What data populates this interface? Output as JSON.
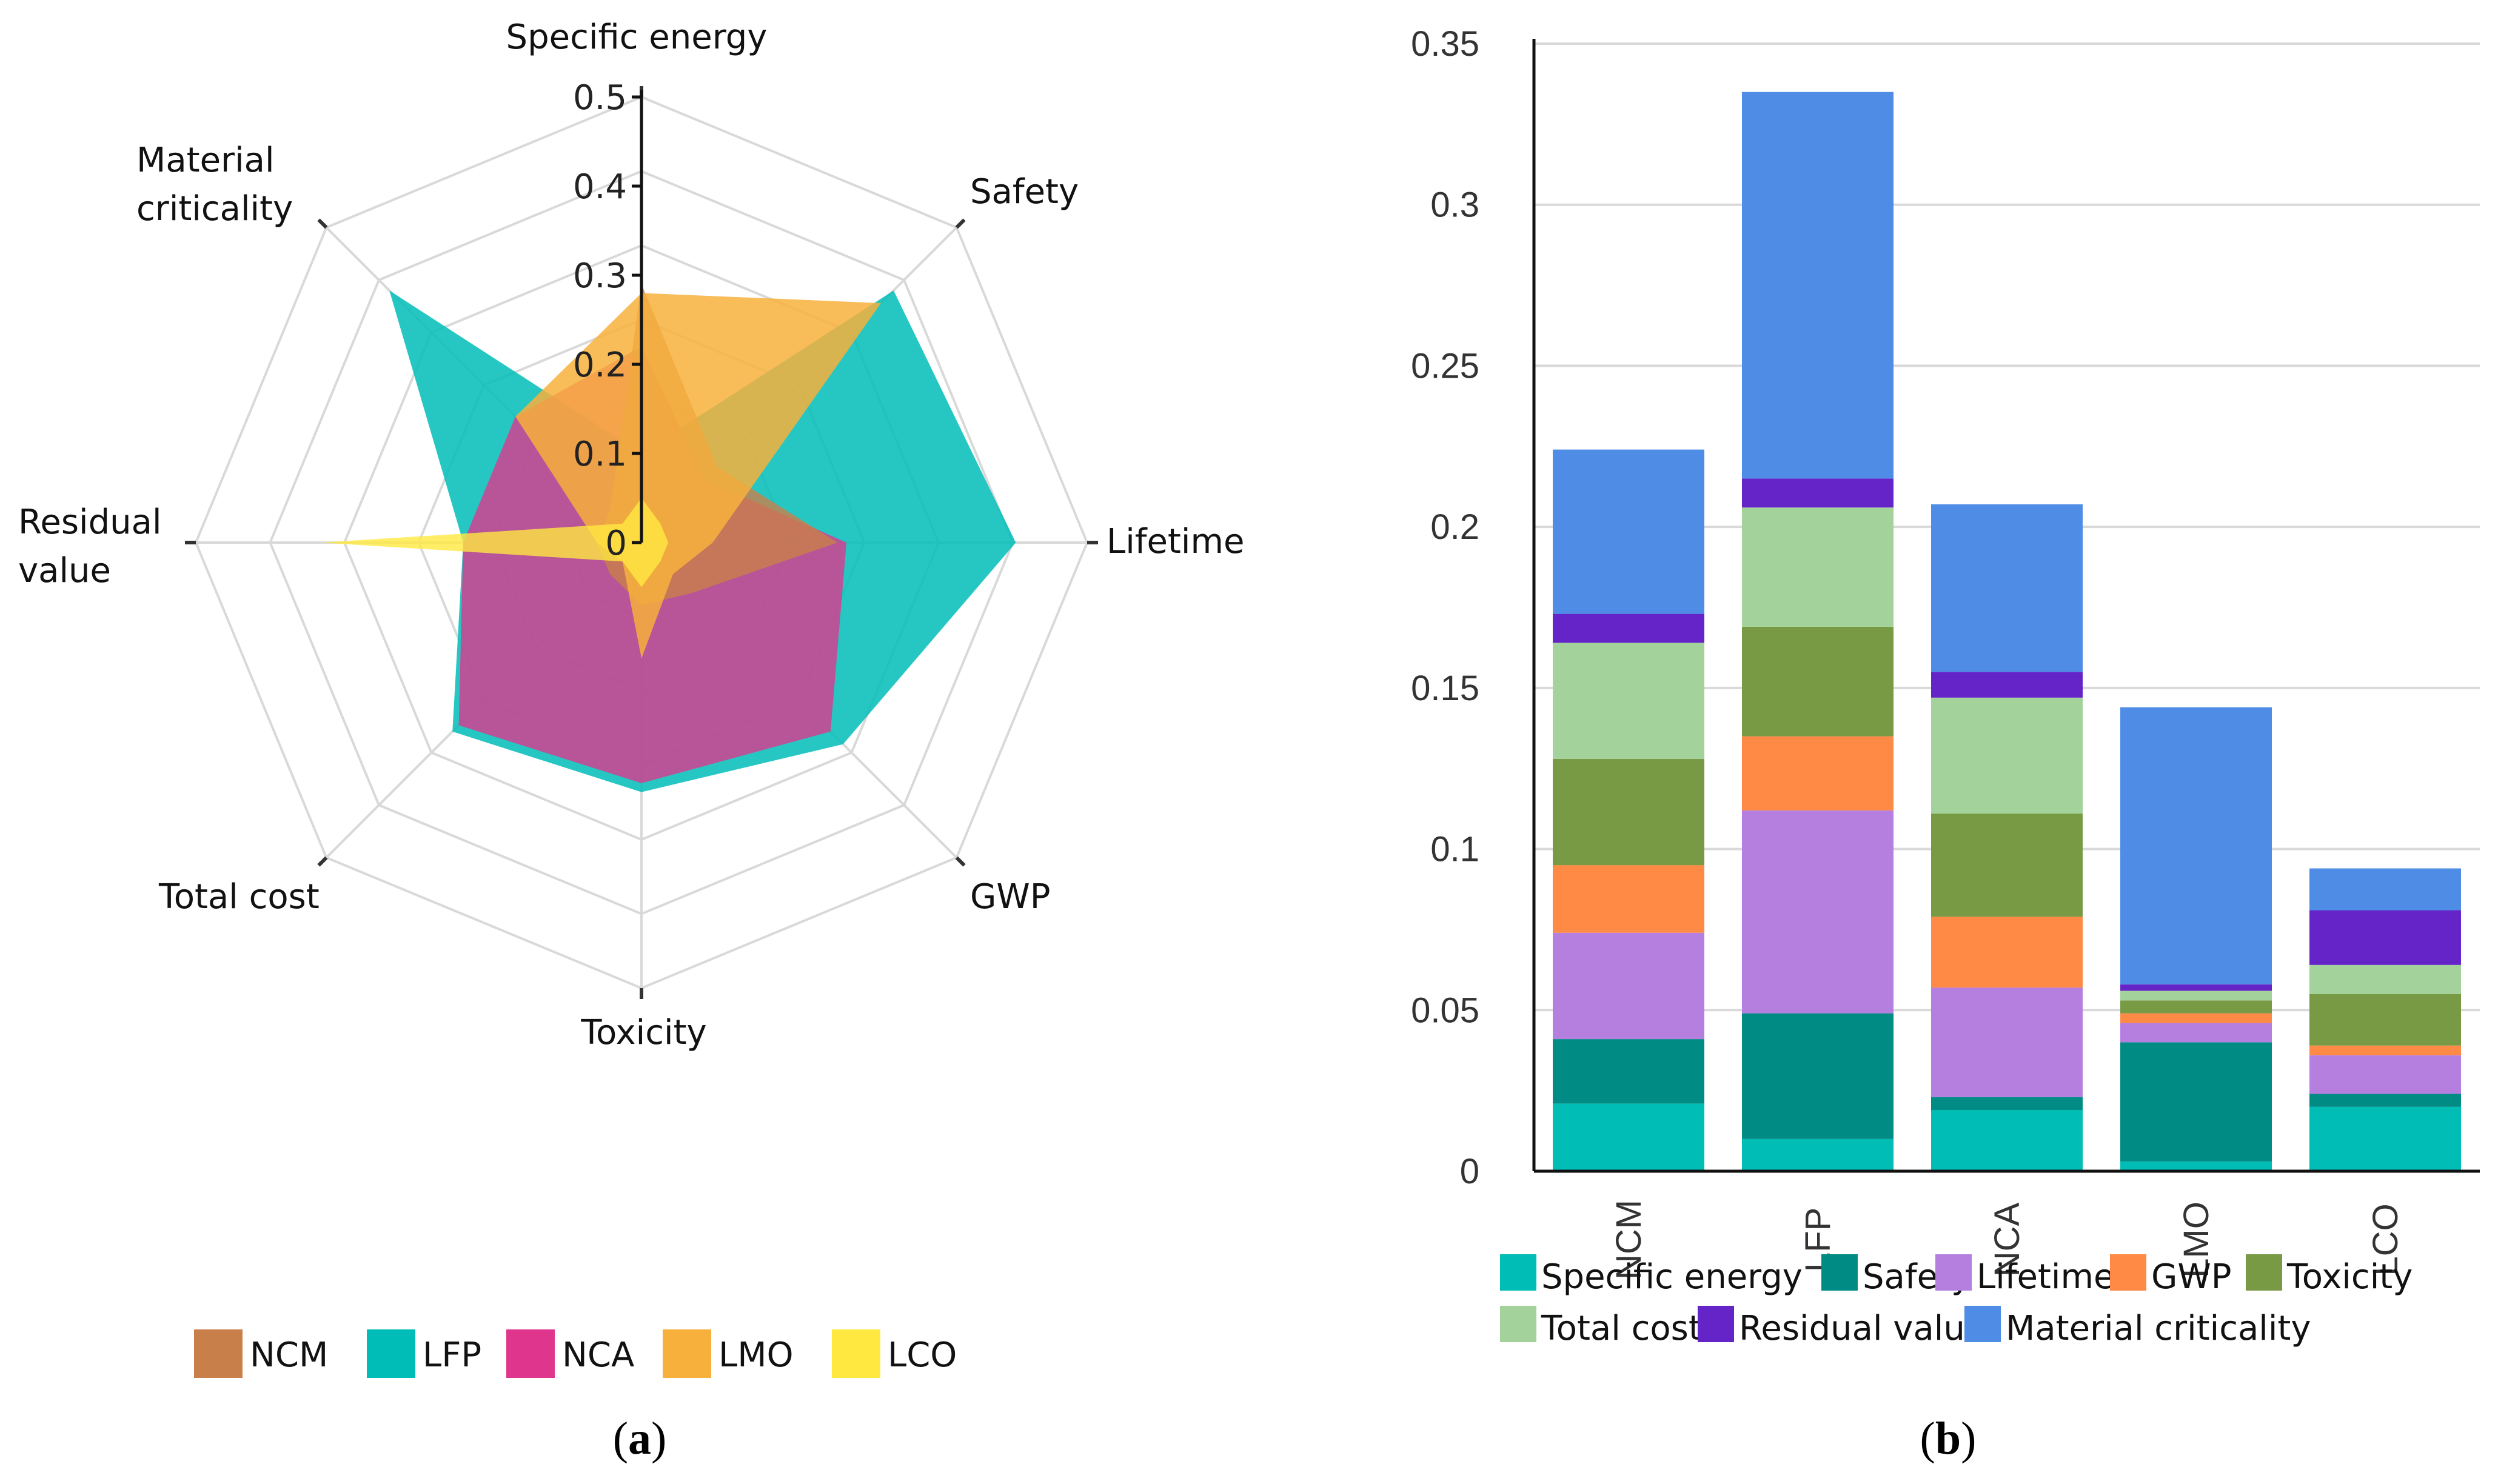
{
  "panel_labels": {
    "a_open": "(",
    "a": "a",
    "a_close": ")",
    "b_open": "(",
    "b": "b",
    "b_close": ")"
  },
  "chart_data": [
    {
      "type": "radar",
      "panel": "a",
      "axes": [
        "Specific energy",
        "Safety",
        "Lifetime",
        "GWP",
        "Toxicity",
        "Total cost",
        "Residual value",
        "Material criticality"
      ],
      "axis_label_lines": [
        [
          "Specific energy"
        ],
        [
          "Safety"
        ],
        [
          "Lifetime"
        ],
        [
          "GWP"
        ],
        [
          "Toxicity"
        ],
        [
          "Total cost"
        ],
        [
          "Residual",
          "value"
        ],
        [
          "Material",
          "criticality"
        ]
      ],
      "rlim": [
        0,
        0.5
      ],
      "rticks": [
        0,
        0.1,
        0.2,
        0.3,
        0.4,
        0.5
      ],
      "rtick_labels": [
        "0",
        "0.1",
        "0.2",
        "0.3",
        "0.4",
        "0.5"
      ],
      "series": [
        {
          "name": "LFP",
          "color": "#00BDB8",
          "opacity": 0.85,
          "values": [
            0.1,
            0.4,
            0.42,
            0.32,
            0.28,
            0.3,
            0.2,
            0.4
          ]
        },
        {
          "name": "NCA",
          "color": "#E0358C",
          "opacity": 0.78,
          "values": [
            0.22,
            0.1,
            0.23,
            0.3,
            0.27,
            0.29,
            0.2,
            0.2
          ]
        },
        {
          "name": "NCM",
          "color": "#C97F4A",
          "opacity": 0.8,
          "values": [
            0.29,
            0.12,
            0.22,
            0.08,
            0.07,
            0.05,
            0.05,
            0.05
          ]
        },
        {
          "name": "LMO",
          "color": "#F7B03C",
          "opacity": 0.85,
          "values": [
            0.28,
            0.38,
            0.08,
            0.05,
            0.13,
            0.03,
            0.05,
            0.2
          ]
        },
        {
          "name": "LCO",
          "color": "#FFE840",
          "opacity": 0.8,
          "values": [
            0.05,
            0.03,
            0.03,
            0.03,
            0.05,
            0.03,
            0.36,
            0.03
          ]
        }
      ],
      "legend": [
        "NCM",
        "LFP",
        "NCA",
        "LMO",
        "LCO"
      ],
      "legend_colors": [
        "#C97F4A",
        "#00BDB8",
        "#E0358C",
        "#F7B03C",
        "#FFE840"
      ]
    },
    {
      "type": "stacked_bar",
      "panel": "b",
      "categories": [
        "NCM",
        "LFP",
        "NCA",
        "LMO",
        "LCO"
      ],
      "ylim": [
        0,
        0.35
      ],
      "yticks": [
        0,
        0.05,
        0.1,
        0.15,
        0.2,
        0.25,
        0.3,
        0.35
      ],
      "ytick_labels": [
        "0",
        "0.05",
        "0.1",
        "0.15",
        "0.2",
        "0.25",
        "0.3",
        "0.35"
      ],
      "grid": true,
      "series": [
        {
          "name": "Specific energy",
          "color": "#00BDB5",
          "values": [
            0.021,
            0.01,
            0.019,
            0.003,
            0.02
          ]
        },
        {
          "name": "Safety",
          "color": "#008C84",
          "values": [
            0.02,
            0.039,
            0.004,
            0.037,
            0.004
          ]
        },
        {
          "name": "Lifetime",
          "color": "#B57FE0",
          "values": [
            0.033,
            0.063,
            0.034,
            0.006,
            0.012
          ]
        },
        {
          "name": "GWP",
          "color": "#FF8A45",
          "values": [
            0.021,
            0.023,
            0.022,
            0.003,
            0.003
          ]
        },
        {
          "name": "Toxicity",
          "color": "#789A45",
          "values": [
            0.033,
            0.034,
            0.032,
            0.004,
            0.016
          ]
        },
        {
          "name": "Total cost",
          "color": "#A3D29A",
          "values": [
            0.036,
            0.037,
            0.036,
            0.003,
            0.009
          ]
        },
        {
          "name": "Residual value",
          "color": "#6424C8",
          "values": [
            0.009,
            0.009,
            0.008,
            0.002,
            0.017
          ]
        },
        {
          "name": "Material criticality",
          "color": "#4E8CE6",
          "values": [
            0.051,
            0.12,
            0.052,
            0.086,
            0.013
          ]
        }
      ],
      "legend_rows": [
        [
          "Specific energy",
          "Safety",
          "Lifetime",
          "GWP",
          "Toxicity"
        ],
        [
          "Total cost",
          "Residual value",
          "Material criticality"
        ]
      ]
    }
  ]
}
